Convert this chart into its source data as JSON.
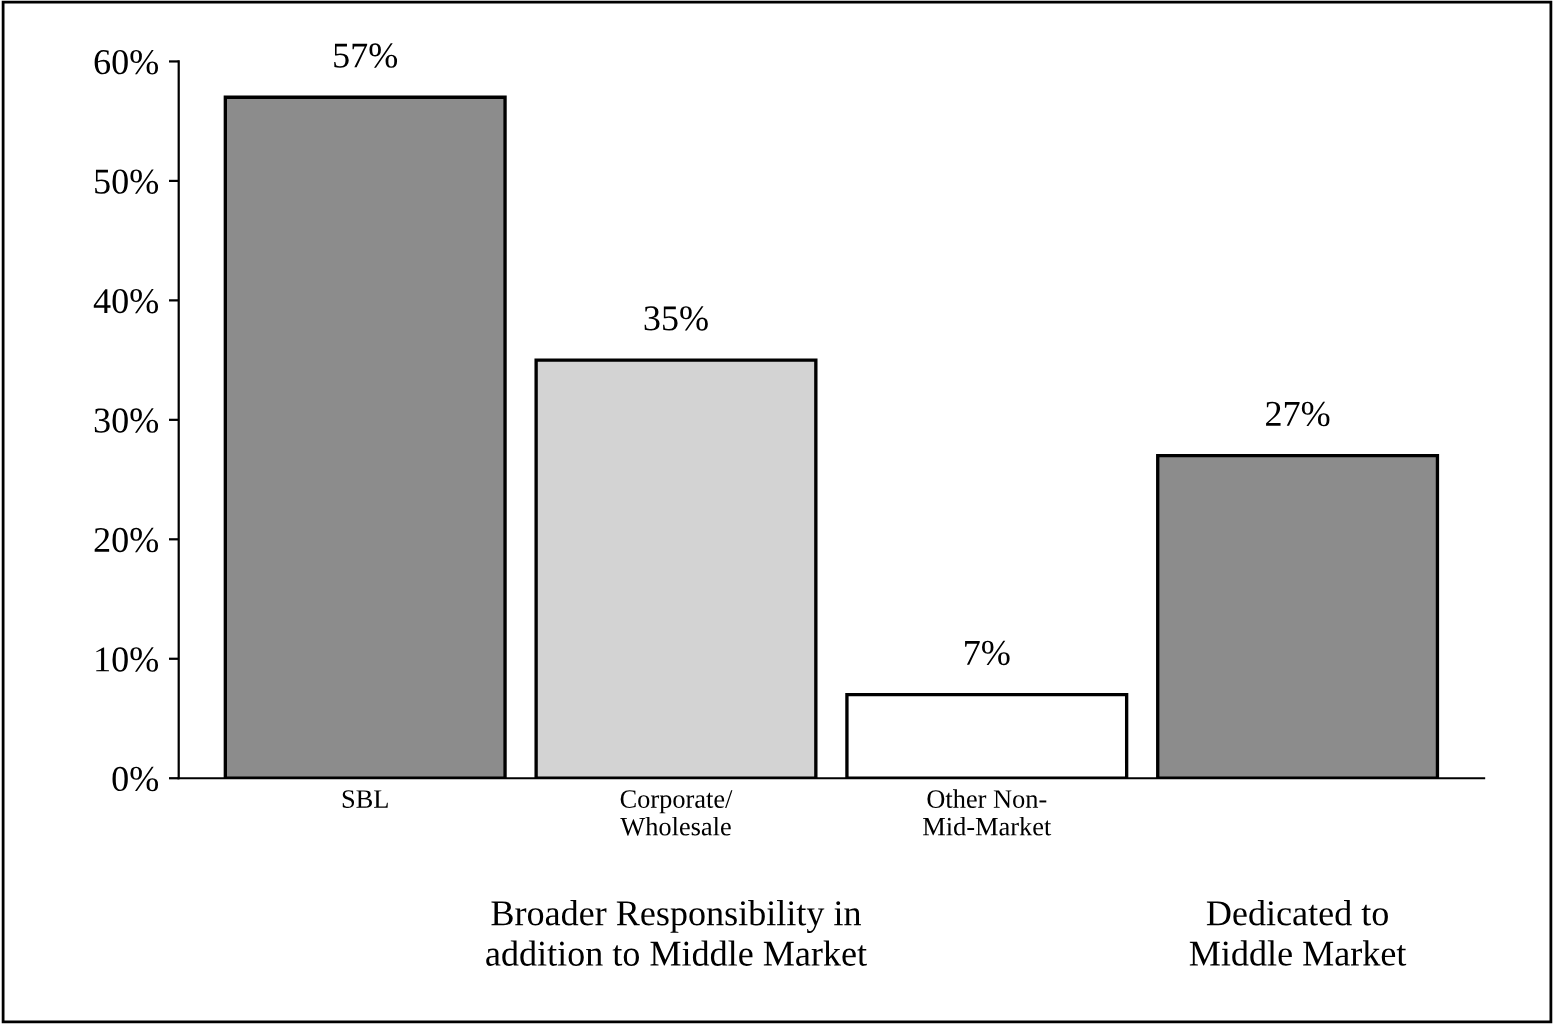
{
  "chart_data": {
    "type": "bar",
    "categories": [
      "SBL",
      "Corporate/\nWholesale",
      "Other Non-\nMid-Market",
      null
    ],
    "values": [
      57,
      35,
      7,
      27
    ],
    "colors": [
      "#8c8c8c",
      "#d3d3d3",
      "#ffffff",
      "#8c8c8c"
    ],
    "value_labels": [
      "57%",
      "35%",
      "7%",
      "27%"
    ],
    "ylim": [
      0,
      60
    ],
    "yticks": [
      {
        "value": 0,
        "label": "0%"
      },
      {
        "value": 10,
        "label": "10%"
      },
      {
        "value": 20,
        "label": "20%"
      },
      {
        "value": 30,
        "label": "30%"
      },
      {
        "value": 40,
        "label": "40%"
      },
      {
        "value": 50,
        "label": "50%"
      },
      {
        "value": 60,
        "label": "60%"
      }
    ],
    "annotations": [
      "Broader Responsibility in\naddition to Middle Market",
      "Dedicated to\nMiddle Market"
    ],
    "grid": false,
    "legend": false
  }
}
